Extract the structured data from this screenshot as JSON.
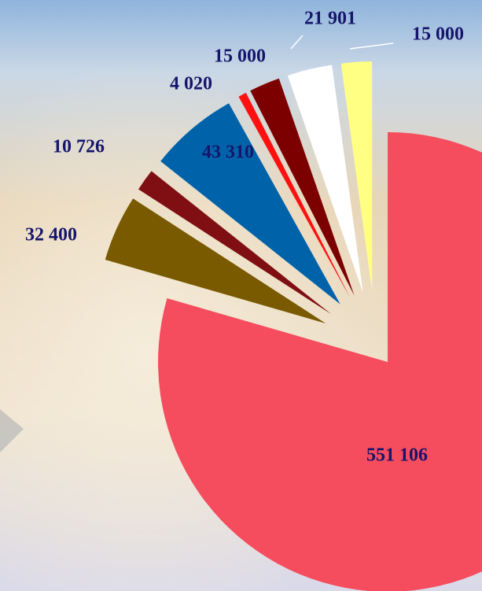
{
  "chart_data": {
    "type": "pie",
    "categories": [
      null,
      null,
      null,
      null,
      null,
      null,
      null,
      null
    ],
    "values": [
      551106,
      32400,
      10726,
      43310,
      4020,
      15000,
      21901,
      15000
    ],
    "value_labels": [
      "551 106",
      "32 400",
      "10 726",
      "43 310",
      "4 020",
      "15 000",
      "21 901",
      "15 000"
    ],
    "colors": [
      "#f54d5e",
      "#7a5a00",
      "#7f0f12",
      "#0063a9",
      "#ff1010",
      "#7d0000",
      "#ffffff",
      "#ffff84"
    ],
    "exploded": true
  }
}
